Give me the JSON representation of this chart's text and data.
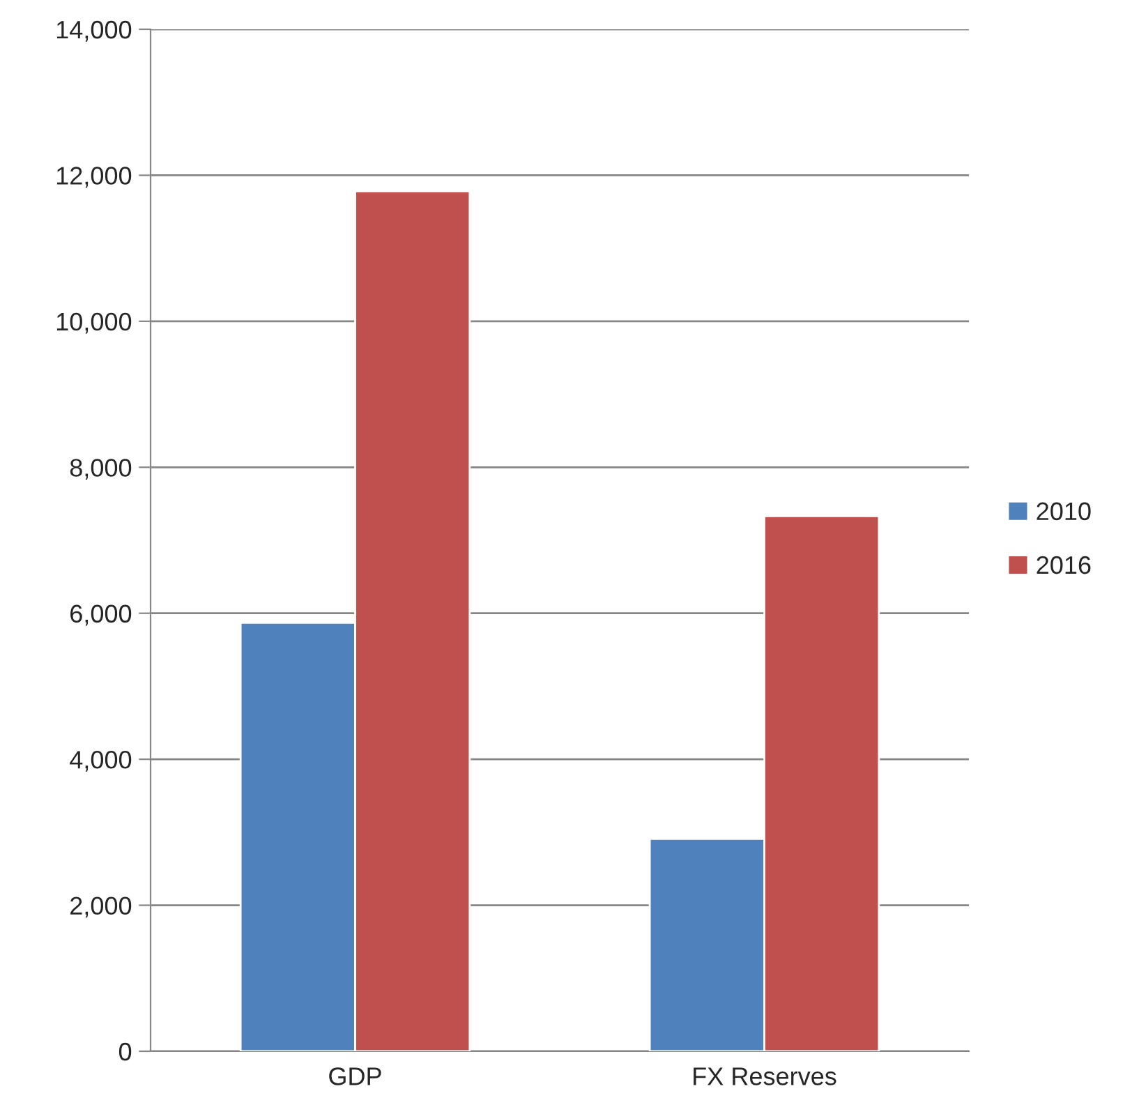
{
  "chart_data": {
    "type": "bar",
    "categories": [
      "GDP",
      "FX Reserves"
    ],
    "series": [
      {
        "name": "2010",
        "color": "#4f81bd",
        "values": [
          5870,
          2910
        ]
      },
      {
        "name": "2016",
        "color": "#c0504d",
        "values": [
          11780,
          7330
        ]
      }
    ],
    "ylim": [
      0,
      14000
    ],
    "yticks": [
      {
        "value": 0,
        "label": "0"
      },
      {
        "value": 2000,
        "label": "2,000"
      },
      {
        "value": 4000,
        "label": "4,000"
      },
      {
        "value": 6000,
        "label": "6,000"
      },
      {
        "value": 8000,
        "label": "8,000"
      },
      {
        "value": 10000,
        "label": "10,000"
      },
      {
        "value": 12000,
        "label": "12,000"
      },
      {
        "value": 14000,
        "label": "14,000"
      }
    ],
    "grid": "y",
    "legend": "right"
  }
}
